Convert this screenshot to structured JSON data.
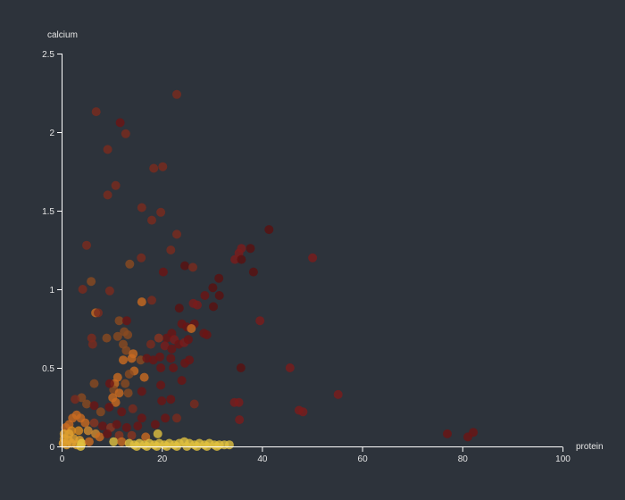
{
  "chart_data": {
    "type": "scatter",
    "title": "",
    "xlabel": "protein",
    "ylabel": "calcium",
    "xlim": [
      0,
      100
    ],
    "ylim": [
      0,
      2.5
    ],
    "x_ticks": [
      0,
      20,
      40,
      60,
      80,
      100
    ],
    "y_ticks": [
      0,
      0.5,
      1,
      1.5,
      2,
      2.5
    ],
    "grid": false,
    "legend": null,
    "color_encoding": "continuous, dark red (high) → orange → yellow (low / near-zero calcium)",
    "colors": {
      "background": "#2d333b",
      "axis": "#ffffff",
      "text": "#e6e6e6",
      "dark_red": "#6b1414",
      "red": "#7a1c1c",
      "rust": "#8a3520",
      "orange": "#c96a20",
      "yellow": "#e0c040"
    },
    "points": [
      {
        "x": 23.0,
        "y": 2.24,
        "c": "#7a2a1e"
      },
      {
        "x": 6.9,
        "y": 2.13,
        "c": "#7a2a1e"
      },
      {
        "x": 11.7,
        "y": 2.06,
        "c": "#6b1414"
      },
      {
        "x": 12.8,
        "y": 1.99,
        "c": "#7a2a1e"
      },
      {
        "x": 9.2,
        "y": 1.89,
        "c": "#7a2a1e"
      },
      {
        "x": 18.4,
        "y": 1.77,
        "c": "#7a2a1e"
      },
      {
        "x": 20.2,
        "y": 1.78,
        "c": "#7a2a1e"
      },
      {
        "x": 10.8,
        "y": 1.66,
        "c": "#7a2a1e"
      },
      {
        "x": 9.2,
        "y": 1.6,
        "c": "#7a2a1e"
      },
      {
        "x": 16.0,
        "y": 1.52,
        "c": "#7a2a1e"
      },
      {
        "x": 19.8,
        "y": 1.49,
        "c": "#7a2a1e"
      },
      {
        "x": 18.0,
        "y": 1.44,
        "c": "#7a2a1e"
      },
      {
        "x": 23.0,
        "y": 1.35,
        "c": "#7a2a1e"
      },
      {
        "x": 5.0,
        "y": 1.28,
        "c": "#7a2a1e"
      },
      {
        "x": 21.8,
        "y": 1.25,
        "c": "#7a2a1e"
      },
      {
        "x": 15.9,
        "y": 1.2,
        "c": "#7a2a1e"
      },
      {
        "x": 13.6,
        "y": 1.16,
        "c": "#8a4a20"
      },
      {
        "x": 20.3,
        "y": 1.11,
        "c": "#6b1414"
      },
      {
        "x": 24.6,
        "y": 1.15,
        "c": "#5a1010"
      },
      {
        "x": 26.2,
        "y": 1.14,
        "c": "#7a2a1e"
      },
      {
        "x": 41.4,
        "y": 1.38,
        "c": "#5a1010"
      },
      {
        "x": 37.7,
        "y": 1.26,
        "c": "#5a1010"
      },
      {
        "x": 35.9,
        "y": 1.26,
        "c": "#7a1c1c"
      },
      {
        "x": 35.4,
        "y": 1.23,
        "c": "#7a1c1c"
      },
      {
        "x": 34.6,
        "y": 1.19,
        "c": "#7a1c1c"
      },
      {
        "x": 35.9,
        "y": 1.19,
        "c": "#5a1010"
      },
      {
        "x": 38.3,
        "y": 1.11,
        "c": "#5a1010"
      },
      {
        "x": 50.1,
        "y": 1.2,
        "c": "#7a1c1c"
      },
      {
        "x": 5.9,
        "y": 1.05,
        "c": "#8a4a20"
      },
      {
        "x": 4.2,
        "y": 1.0,
        "c": "#7a2a1e"
      },
      {
        "x": 9.6,
        "y": 0.99,
        "c": "#7a2a1e"
      },
      {
        "x": 31.4,
        "y": 1.07,
        "c": "#5a1010"
      },
      {
        "x": 30.2,
        "y": 1.01,
        "c": "#5a1010"
      },
      {
        "x": 28.6,
        "y": 0.96,
        "c": "#6b1414"
      },
      {
        "x": 31.5,
        "y": 0.96,
        "c": "#5a1010"
      },
      {
        "x": 16.0,
        "y": 0.92,
        "c": "#c96a20"
      },
      {
        "x": 18.0,
        "y": 0.93,
        "c": "#7a2a1e"
      },
      {
        "x": 26.3,
        "y": 0.91,
        "c": "#7a1c1c"
      },
      {
        "x": 27.1,
        "y": 0.9,
        "c": "#7a1c1c"
      },
      {
        "x": 30.3,
        "y": 0.89,
        "c": "#5a1010"
      },
      {
        "x": 23.5,
        "y": 0.88,
        "c": "#5a1010"
      },
      {
        "x": 6.8,
        "y": 0.85,
        "c": "#c96a20"
      },
      {
        "x": 7.3,
        "y": 0.85,
        "c": "#7a2a1e"
      },
      {
        "x": 11.5,
        "y": 0.8,
        "c": "#8a4a20"
      },
      {
        "x": 13.0,
        "y": 0.8,
        "c": "#6b1414"
      },
      {
        "x": 39.6,
        "y": 0.8,
        "c": "#7a1c1c"
      },
      {
        "x": 24.0,
        "y": 0.78,
        "c": "#6b1414"
      },
      {
        "x": 25.0,
        "y": 0.76,
        "c": "#6b1414"
      },
      {
        "x": 26.5,
        "y": 0.78,
        "c": "#6b1414"
      },
      {
        "x": 28.4,
        "y": 0.72,
        "c": "#6b1414"
      },
      {
        "x": 29.0,
        "y": 0.71,
        "c": "#6b1414"
      },
      {
        "x": 25.9,
        "y": 0.75,
        "c": "#c96a20"
      },
      {
        "x": 22.0,
        "y": 0.72,
        "c": "#6b1414"
      },
      {
        "x": 21.0,
        "y": 0.69,
        "c": "#6b1414"
      },
      {
        "x": 22.5,
        "y": 0.68,
        "c": "#7a1c1c"
      },
      {
        "x": 23.4,
        "y": 0.65,
        "c": "#6b1414"
      },
      {
        "x": 24.5,
        "y": 0.66,
        "c": "#7a1c1c"
      },
      {
        "x": 25.3,
        "y": 0.68,
        "c": "#6b1414"
      },
      {
        "x": 20.6,
        "y": 0.64,
        "c": "#7a1c1c"
      },
      {
        "x": 22.0,
        "y": 0.62,
        "c": "#6b1414"
      },
      {
        "x": 19.4,
        "y": 0.69,
        "c": "#8a3520"
      },
      {
        "x": 17.8,
        "y": 0.65,
        "c": "#7a2a1e"
      },
      {
        "x": 12.5,
        "y": 0.73,
        "c": "#8a4a20"
      },
      {
        "x": 13.2,
        "y": 0.71,
        "c": "#8a4a20"
      },
      {
        "x": 11.2,
        "y": 0.7,
        "c": "#8a4a20"
      },
      {
        "x": 9.0,
        "y": 0.69,
        "c": "#8a4a20"
      },
      {
        "x": 6.0,
        "y": 0.69,
        "c": "#7a2a1e"
      },
      {
        "x": 6.2,
        "y": 0.65,
        "c": "#7a2a1e"
      },
      {
        "x": 12.3,
        "y": 0.65,
        "c": "#8a4a20"
      },
      {
        "x": 12.9,
        "y": 0.61,
        "c": "#8a4a20"
      },
      {
        "x": 14.3,
        "y": 0.59,
        "c": "#c96a20"
      },
      {
        "x": 14.0,
        "y": 0.56,
        "c": "#c96a20"
      },
      {
        "x": 12.3,
        "y": 0.55,
        "c": "#c96a20"
      },
      {
        "x": 15.8,
        "y": 0.55,
        "c": "#8a4a20"
      },
      {
        "x": 17.0,
        "y": 0.56,
        "c": "#6b1414"
      },
      {
        "x": 18.3,
        "y": 0.55,
        "c": "#6b1414"
      },
      {
        "x": 19.6,
        "y": 0.57,
        "c": "#6b1414"
      },
      {
        "x": 21.8,
        "y": 0.56,
        "c": "#6b1414"
      },
      {
        "x": 24.6,
        "y": 0.53,
        "c": "#6b1414"
      },
      {
        "x": 25.5,
        "y": 0.55,
        "c": "#6b1414"
      },
      {
        "x": 19.8,
        "y": 0.5,
        "c": "#6b1414"
      },
      {
        "x": 22.3,
        "y": 0.5,
        "c": "#6b1414"
      },
      {
        "x": 35.8,
        "y": 0.5,
        "c": "#5a1010"
      },
      {
        "x": 45.6,
        "y": 0.5,
        "c": "#7a1c1c"
      },
      {
        "x": 14.5,
        "y": 0.48,
        "c": "#c96a20"
      },
      {
        "x": 13.5,
        "y": 0.46,
        "c": "#8a4a20"
      },
      {
        "x": 11.2,
        "y": 0.44,
        "c": "#c96a20"
      },
      {
        "x": 10.6,
        "y": 0.4,
        "c": "#c96a20"
      },
      {
        "x": 16.5,
        "y": 0.44,
        "c": "#c96a20"
      },
      {
        "x": 10.4,
        "y": 0.36,
        "c": "#8a4a20"
      },
      {
        "x": 12.7,
        "y": 0.4,
        "c": "#8a4a20"
      },
      {
        "x": 6.5,
        "y": 0.4,
        "c": "#8a4a20"
      },
      {
        "x": 9.6,
        "y": 0.4,
        "c": "#6b1414"
      },
      {
        "x": 19.8,
        "y": 0.39,
        "c": "#6b1414"
      },
      {
        "x": 24.0,
        "y": 0.42,
        "c": "#6b1414"
      },
      {
        "x": 16.0,
        "y": 0.35,
        "c": "#6b1414"
      },
      {
        "x": 13.3,
        "y": 0.34,
        "c": "#8a4a20"
      },
      {
        "x": 11.5,
        "y": 0.34,
        "c": "#c96a20"
      },
      {
        "x": 10.2,
        "y": 0.31,
        "c": "#c96a20"
      },
      {
        "x": 10.8,
        "y": 0.28,
        "c": "#c96a20"
      },
      {
        "x": 20.0,
        "y": 0.29,
        "c": "#6b1414"
      },
      {
        "x": 21.8,
        "y": 0.3,
        "c": "#6b1414"
      },
      {
        "x": 26.5,
        "y": 0.27,
        "c": "#7a2a1e"
      },
      {
        "x": 34.5,
        "y": 0.28,
        "c": "#7a1c1c"
      },
      {
        "x": 35.4,
        "y": 0.28,
        "c": "#7a1c1c"
      },
      {
        "x": 55.2,
        "y": 0.33,
        "c": "#7a1c1c"
      },
      {
        "x": 47.4,
        "y": 0.23,
        "c": "#7a1c1c"
      },
      {
        "x": 48.2,
        "y": 0.22,
        "c": "#7a1c1c"
      },
      {
        "x": 4.0,
        "y": 0.31,
        "c": "#8a4a20"
      },
      {
        "x": 2.7,
        "y": 0.3,
        "c": "#7a2a1e"
      },
      {
        "x": 5.0,
        "y": 0.27,
        "c": "#8a4a20"
      },
      {
        "x": 6.5,
        "y": 0.26,
        "c": "#6b1414"
      },
      {
        "x": 7.8,
        "y": 0.22,
        "c": "#8a4a20"
      },
      {
        "x": 9.5,
        "y": 0.25,
        "c": "#6b1414"
      },
      {
        "x": 12.0,
        "y": 0.22,
        "c": "#6b1414"
      },
      {
        "x": 14.2,
        "y": 0.24,
        "c": "#7a2a1e"
      },
      {
        "x": 16.0,
        "y": 0.18,
        "c": "#6b1414"
      },
      {
        "x": 20.7,
        "y": 0.18,
        "c": "#6b1414"
      },
      {
        "x": 23.0,
        "y": 0.18,
        "c": "#7a2a1e"
      },
      {
        "x": 35.5,
        "y": 0.17,
        "c": "#7a1c1c"
      },
      {
        "x": 3.0,
        "y": 0.2,
        "c": "#c96a20"
      },
      {
        "x": 2.2,
        "y": 0.18,
        "c": "#c96a20"
      },
      {
        "x": 3.8,
        "y": 0.18,
        "c": "#c96a20"
      },
      {
        "x": 1.5,
        "y": 0.14,
        "c": "#c96a20"
      },
      {
        "x": 4.7,
        "y": 0.15,
        "c": "#c96a20"
      },
      {
        "x": 6.5,
        "y": 0.15,
        "c": "#8a3520"
      },
      {
        "x": 8.2,
        "y": 0.13,
        "c": "#6b1414"
      },
      {
        "x": 9.8,
        "y": 0.12,
        "c": "#8a3520"
      },
      {
        "x": 11.0,
        "y": 0.14,
        "c": "#6b1414"
      },
      {
        "x": 13.0,
        "y": 0.12,
        "c": "#6b1414"
      },
      {
        "x": 15.2,
        "y": 0.13,
        "c": "#6b1414"
      },
      {
        "x": 18.7,
        "y": 0.14,
        "c": "#6b1414"
      },
      {
        "x": 0.8,
        "y": 0.12,
        "c": "#c96a20"
      },
      {
        "x": 2.0,
        "y": 0.1,
        "c": "#d98a20"
      },
      {
        "x": 3.4,
        "y": 0.1,
        "c": "#d98a20"
      },
      {
        "x": 5.3,
        "y": 0.1,
        "c": "#d08a30"
      },
      {
        "x": 6.8,
        "y": 0.08,
        "c": "#d08a30"
      },
      {
        "x": 7.6,
        "y": 0.06,
        "c": "#c96a20"
      },
      {
        "x": 9.1,
        "y": 0.08,
        "c": "#6b1414"
      },
      {
        "x": 11.5,
        "y": 0.07,
        "c": "#8a3520"
      },
      {
        "x": 14.0,
        "y": 0.07,
        "c": "#8a3520"
      },
      {
        "x": 16.8,
        "y": 0.06,
        "c": "#c96a20"
      },
      {
        "x": 19.2,
        "y": 0.08,
        "c": "#e0c040"
      },
      {
        "x": 77.0,
        "y": 0.08,
        "c": "#6b1414"
      },
      {
        "x": 81.1,
        "y": 0.06,
        "c": "#6b1414"
      },
      {
        "x": 82.2,
        "y": 0.09,
        "c": "#6b1414"
      },
      {
        "x": 0.5,
        "y": 0.05,
        "c": "#e0a030"
      },
      {
        "x": 1.4,
        "y": 0.04,
        "c": "#e0a030"
      },
      {
        "x": 2.4,
        "y": 0.05,
        "c": "#e0a030"
      },
      {
        "x": 3.6,
        "y": 0.04,
        "c": "#e0a030"
      },
      {
        "x": 0.3,
        "y": 0.02,
        "c": "#e0a030"
      },
      {
        "x": 1.0,
        "y": 0.01,
        "c": "#e0a030"
      },
      {
        "x": 2.0,
        "y": 0.02,
        "c": "#e0a030"
      },
      {
        "x": 3.0,
        "y": 0.01,
        "c": "#e0a030"
      },
      {
        "x": 4.0,
        "y": 0.02,
        "c": "#e0a030"
      },
      {
        "x": 0.5,
        "y": 0.08,
        "c": "#e0a030"
      },
      {
        "x": 1.5,
        "y": 0.08,
        "c": "#e0a030"
      },
      {
        "x": 4.0,
        "y": 0.02,
        "c": "#e0c040"
      },
      {
        "x": 5.5,
        "y": 0.03,
        "c": "#c96a20"
      },
      {
        "x": 10.4,
        "y": 0.03,
        "c": "#e0c040"
      },
      {
        "x": 12.0,
        "y": 0.03,
        "c": "#c96a20"
      },
      {
        "x": 13.5,
        "y": 0.02,
        "c": "#e0c040"
      },
      {
        "x": 14.5,
        "y": 0.01,
        "c": "#e0c040"
      },
      {
        "x": 15.5,
        "y": 0.02,
        "c": "#e0c040"
      },
      {
        "x": 16.5,
        "y": 0.01,
        "c": "#e0c040"
      },
      {
        "x": 17.5,
        "y": 0.02,
        "c": "#e0c040"
      },
      {
        "x": 18.5,
        "y": 0.01,
        "c": "#e0c040"
      },
      {
        "x": 19.5,
        "y": 0.02,
        "c": "#e0c040"
      },
      {
        "x": 20.5,
        "y": 0.01,
        "c": "#e0c040"
      },
      {
        "x": 21.5,
        "y": 0.02,
        "c": "#e0c040"
      },
      {
        "x": 22.5,
        "y": 0.01,
        "c": "#e0c040"
      },
      {
        "x": 23.5,
        "y": 0.02,
        "c": "#e0c040"
      },
      {
        "x": 24.5,
        "y": 0.03,
        "c": "#e0c040"
      },
      {
        "x": 25.5,
        "y": 0.02,
        "c": "#e0c040"
      },
      {
        "x": 26.5,
        "y": 0.01,
        "c": "#e0c040"
      },
      {
        "x": 27.5,
        "y": 0.02,
        "c": "#e0c040"
      },
      {
        "x": 28.5,
        "y": 0.01,
        "c": "#e0c040"
      },
      {
        "x": 29.5,
        "y": 0.02,
        "c": "#e0c040"
      },
      {
        "x": 30.5,
        "y": 0.01,
        "c": "#e0c040"
      },
      {
        "x": 31.5,
        "y": 0.01,
        "c": "#e0c040"
      },
      {
        "x": 32.5,
        "y": 0.01,
        "c": "#e0c040"
      },
      {
        "x": 33.5,
        "y": 0.01,
        "c": "#e0c040"
      },
      {
        "x": 15.0,
        "y": 0.0,
        "c": "#e0c040"
      },
      {
        "x": 17.0,
        "y": 0.0,
        "c": "#e0c040"
      },
      {
        "x": 19.0,
        "y": 0.0,
        "c": "#e0c040"
      },
      {
        "x": 21.0,
        "y": 0.0,
        "c": "#e0c040"
      },
      {
        "x": 23.0,
        "y": 0.0,
        "c": "#e0c040"
      },
      {
        "x": 25.0,
        "y": 0.0,
        "c": "#e0c040"
      },
      {
        "x": 27.0,
        "y": 0.0,
        "c": "#e0c040"
      },
      {
        "x": 29.0,
        "y": 0.0,
        "c": "#e0c040"
      },
      {
        "x": 31.0,
        "y": 0.0,
        "c": "#e0c040"
      },
      {
        "x": 3.8,
        "y": 0.0,
        "c": "#e0c040"
      }
    ]
  },
  "axes": {
    "x": {
      "label": "protein",
      "ticks": [
        "0",
        "20",
        "40",
        "60",
        "80",
        "100"
      ]
    },
    "y": {
      "label": "calcium",
      "ticks": [
        "0",
        "0.5",
        "1",
        "1.5",
        "2",
        "2.5"
      ]
    }
  }
}
